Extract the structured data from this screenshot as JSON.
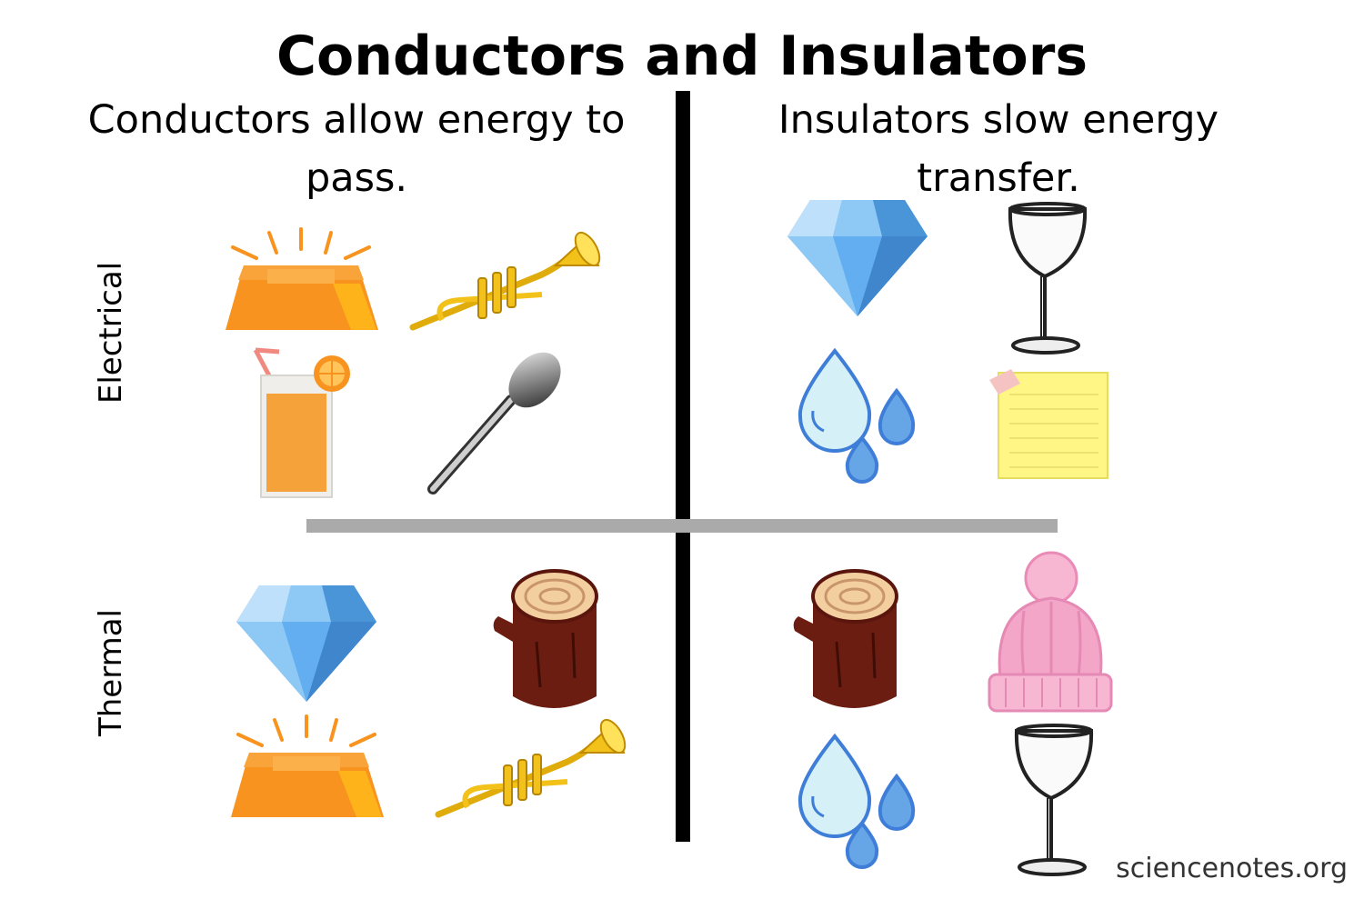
{
  "title": "Conductors and Insulators",
  "columns": {
    "conductors": "Conductors allow energy to pass.",
    "insulators": "Insulators slow energy transfer."
  },
  "rows": {
    "electrical": "Electrical",
    "thermal": "Thermal"
  },
  "icons": {
    "electrical_conductors": [
      "gold-bar-icon",
      "trumpet-icon",
      "juice-glass-icon",
      "spoon-icon"
    ],
    "electrical_insulators": [
      "diamond-icon",
      "wine-glass-icon",
      "water-drops-icon",
      "sticky-note-icon"
    ],
    "thermal_conductors": [
      "diamond-icon",
      "wood-log-icon",
      "gold-bar-icon",
      "trumpet-icon"
    ],
    "thermal_insulators": [
      "wood-log-icon",
      "knit-hat-icon",
      "water-drops-icon",
      "wine-glass-icon"
    ]
  },
  "colors": {
    "gold": "#f7931e",
    "brass": "#f2c21b",
    "diamond": "#62aef0",
    "water": "#5b9ae2",
    "wood": "#6b1d12",
    "hat": "#f3a6c8",
    "note": "#fff685",
    "divider_vertical": "#000000",
    "divider_horizontal": "#aaaaaa"
  },
  "footer": "sciencenotes.org"
}
